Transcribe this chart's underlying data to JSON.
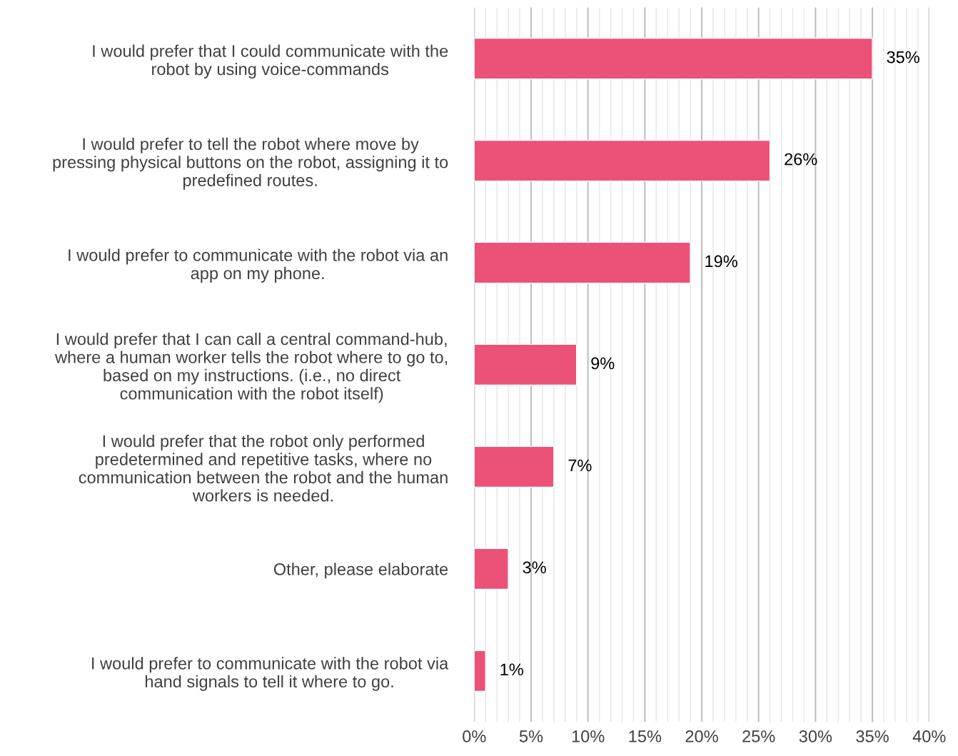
{
  "chart_data": {
    "type": "bar",
    "orientation": "horizontal",
    "categories": [
      "I would prefer that I could communicate with the\nrobot by using voice-commands",
      "I would prefer to tell the robot where move by\npressing physical buttons on the robot, assigning it to\npredefined routes.",
      "I would prefer to communicate with the robot via an\napp on my phone.",
      "I would prefer that I can call a central command-hub,\nwhere a human worker tells the robot where to go to,\nbased on my instructions. (i.e., no direct\ncommunication with the robot itself)",
      "I would prefer that the robot only performed\npredetermined and repetitive tasks, where no\ncommunication between the robot and the human\nworkers is needed.",
      "Other, please elaborate",
      "I would prefer to communicate with the robot via\nhand signals to tell it where to go."
    ],
    "values": [
      35,
      26,
      19,
      9,
      7,
      3,
      1
    ],
    "value_labels": [
      "35%",
      "26%",
      "19%",
      "9%",
      "7%",
      "3%",
      "1%"
    ],
    "color": "#ec5277",
    "xlim": [
      0,
      40
    ],
    "xticks": [
      {
        "value": 0,
        "label": "0%"
      },
      {
        "value": 5,
        "label": "5%"
      },
      {
        "value": 10,
        "label": "10%"
      },
      {
        "value": 15,
        "label": "15%"
      },
      {
        "value": 20,
        "label": "20%"
      },
      {
        "value": 25,
        "label": "25%"
      },
      {
        "value": 30,
        "label": "30%"
      },
      {
        "value": 35,
        "label": "35%"
      },
      {
        "value": 40,
        "label": "40%"
      }
    ],
    "grid": "x"
  }
}
